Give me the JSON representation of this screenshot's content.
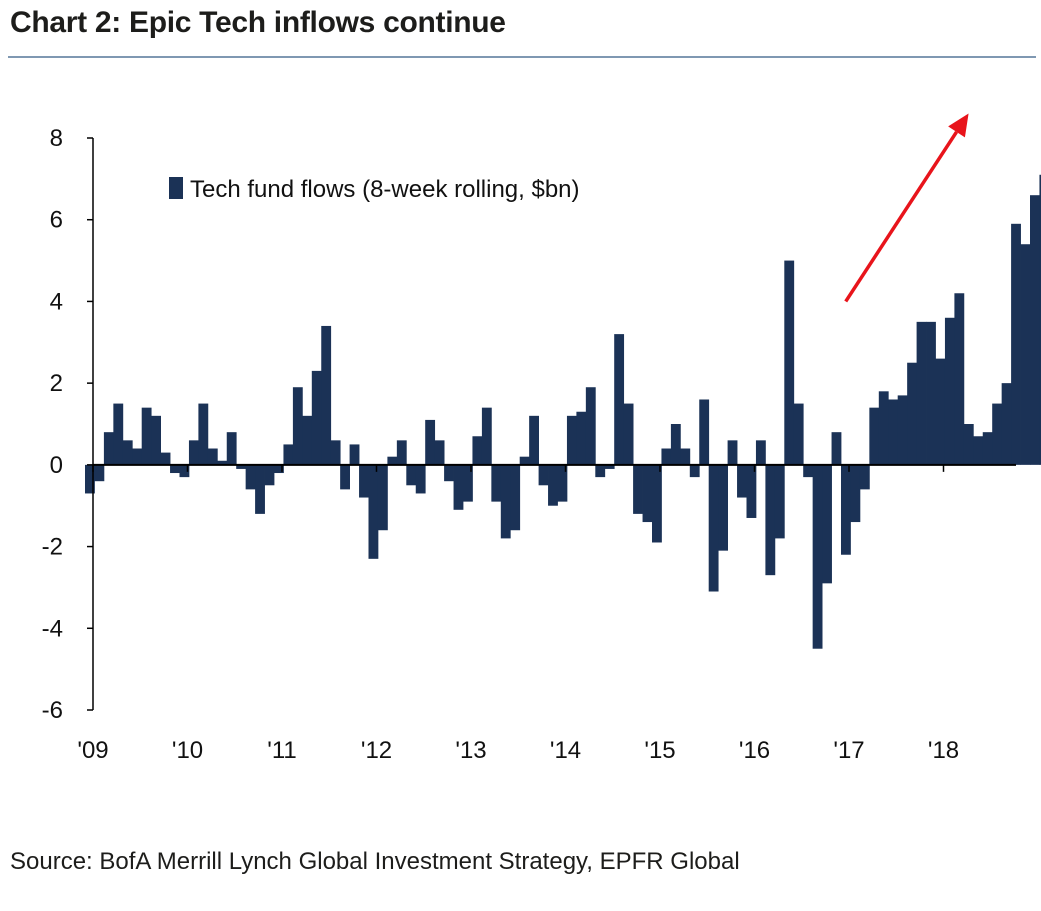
{
  "title": "Chart 2: Epic Tech inflows continue",
  "source": "Source: BofA Merrill Lynch Global Investment Strategy, EPFR Global",
  "chart_data": {
    "type": "bar",
    "series": [
      {
        "name": "Tech fund flows (8-week rolling, $bn)",
        "color": "#1b3256",
        "x_start": 2009.0,
        "x_step": 0.1,
        "values": [
          -0.7,
          -0.4,
          0.8,
          1.5,
          0.6,
          0.4,
          1.4,
          1.2,
          0.3,
          -0.2,
          -0.3,
          0.6,
          1.5,
          0.4,
          0.1,
          0.8,
          -0.1,
          -0.6,
          -1.2,
          -0.5,
          -0.2,
          0.5,
          1.9,
          1.2,
          2.3,
          3.4,
          0.6,
          -0.6,
          0.5,
          -0.8,
          -2.3,
          -1.6,
          0.2,
          0.6,
          -0.5,
          -0.7,
          1.1,
          0.6,
          -0.4,
          -1.1,
          -0.9,
          0.7,
          1.4,
          -0.9,
          -1.8,
          -1.6,
          0.2,
          1.2,
          -0.5,
          -1.0,
          -0.9,
          1.2,
          1.3,
          1.9,
          -0.3,
          -0.1,
          3.2,
          1.5,
          -1.2,
          -1.4,
          -1.9,
          0.4,
          1.0,
          0.4,
          -0.3,
          1.6,
          -3.1,
          -2.1,
          0.6,
          -0.8,
          -1.3,
          0.6,
          -2.7,
          -1.8,
          5.0,
          1.5,
          -0.3,
          -4.5,
          -2.9,
          0.8,
          -2.2,
          -1.4,
          -0.6,
          1.4,
          1.8,
          1.6,
          1.7,
          2.5,
          3.5,
          3.5,
          2.6,
          3.6,
          4.2,
          1.0,
          0.7,
          0.8,
          1.5,
          2.0,
          5.9,
          5.4,
          6.6,
          7.1
        ]
      }
    ],
    "x_tick_labels": [
      "'09",
      "'10",
      "'11",
      "'12",
      "'13",
      "'14",
      "'15",
      "'16",
      "'17",
      "'18"
    ],
    "x_ticks": [
      2009,
      2010,
      2011,
      2012,
      2013,
      2014,
      2015,
      2016,
      2017,
      2018
    ],
    "xlim": [
      2009,
      2019
    ],
    "y_ticks": [
      8,
      6,
      4,
      2,
      0,
      -2,
      -4,
      -6
    ],
    "y_tick_labels": [
      "8",
      "6",
      "4",
      "2",
      "0",
      "-2",
      "-4",
      "-6"
    ],
    "ylim": [
      -6,
      8
    ],
    "legend": {
      "label": "Tech fund flows (8-week rolling, $bn)",
      "position": "top-left"
    },
    "annotations": [
      {
        "type": "arrow",
        "color": "#e8141b",
        "from": [
          2017.05,
          4.0
        ],
        "to": [
          2018.35,
          8.6
        ]
      }
    ],
    "xlabel": "",
    "ylabel": ""
  }
}
